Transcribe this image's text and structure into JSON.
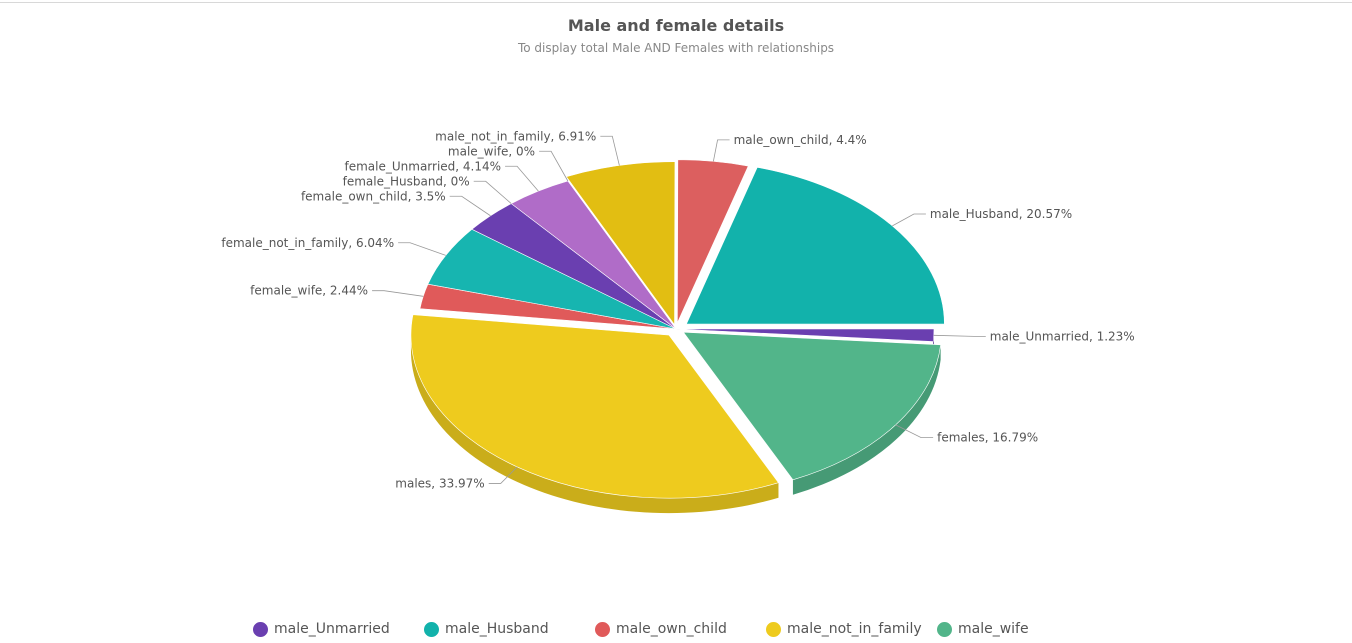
{
  "chart_data": {
    "type": "pie",
    "title": "Male and female details",
    "subtitle": "To display total Male AND Females with relationships",
    "slices": [
      {
        "label": "male_Unmarried",
        "value": 1.23,
        "color": "#6a3fb0"
      },
      {
        "label": "females",
        "value": 16.79,
        "color": "#52b58a"
      },
      {
        "label": "males",
        "value": 33.97,
        "color": "#eecb1e"
      },
      {
        "label": "female_wife",
        "value": 2.44,
        "color": "#e05a5a"
      },
      {
        "label": "female_not_in_family",
        "value": 6.04,
        "color": "#17b5b0"
      },
      {
        "label": "female_own_child",
        "value": 3.5,
        "color": "#6a3fb0"
      },
      {
        "label": "female_Husband",
        "value": 0,
        "color": "#52b58a"
      },
      {
        "label": "female_Unmarried",
        "value": 4.14,
        "color": "#b06cc8"
      },
      {
        "label": "male_wife",
        "value": 0,
        "color": "#52b58a"
      },
      {
        "label": "male_not_in_family",
        "value": 6.91,
        "color": "#e2be12"
      },
      {
        "label": "male_own_child",
        "value": 4.4,
        "color": "#dc5f5f"
      },
      {
        "label": "male_Husband",
        "value": 20.57,
        "color": "#12b2ab"
      }
    ],
    "data_labels": [
      "male_Unmarried, 1.23%",
      "females, 16.79%",
      "males, 33.97%",
      "female_wife, 2.44%",
      "female_not_in_family, 6.04%",
      "female_own_child, 3.5%",
      "female_Husband, 0%",
      "female_Unmarried, 4.14%",
      "male_wife, 0%",
      "male_not_in_family, 6.91%",
      "male_own_child, 4.4%",
      "male_Husband, 20.57%"
    ],
    "legend": {
      "placement": "bottom",
      "items": [
        {
          "label": "male_Unmarried",
          "color": "#6a3fb0"
        },
        {
          "label": "male_Husband",
          "color": "#12b2ab"
        },
        {
          "label": "male_own_child",
          "color": "#e05a5a"
        },
        {
          "label": "male_not_in_family",
          "color": "#eecb1e"
        },
        {
          "label": "male_wife",
          "color": "#52b58a"
        }
      ]
    }
  }
}
